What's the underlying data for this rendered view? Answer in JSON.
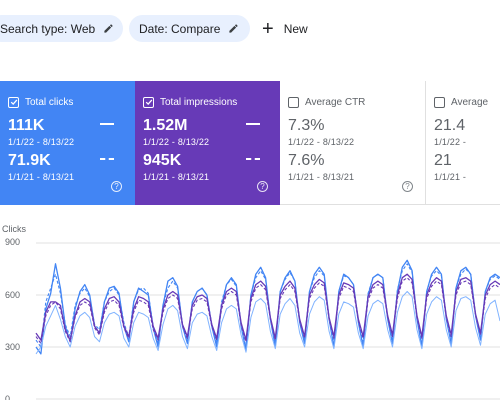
{
  "filters": {
    "search_type": "Search type: Web",
    "date": "Date: Compare",
    "new_label": "New"
  },
  "cards": {
    "clicks": {
      "label": "Total clicks",
      "current": "111K",
      "current_range": "1/1/22 - 8/13/22",
      "previous": "71.9K",
      "previous_range": "1/1/21 - 8/13/21",
      "checked": true,
      "color": "#4285f4"
    },
    "impressions": {
      "label": "Total impressions",
      "current": "1.52M",
      "current_range": "1/1/22 - 8/13/22",
      "previous": "945K",
      "previous_range": "1/1/21 - 8/13/21",
      "checked": true,
      "color": "#673ab7"
    },
    "ctr": {
      "label": "Average CTR",
      "current": "7.3%",
      "current_range": "1/1/22 - 8/13/22",
      "previous": "7.6%",
      "previous_range": "1/1/21 - 8/13/21",
      "checked": false
    },
    "position": {
      "label": "Average",
      "current": "21.4",
      "current_range": "1/1/22 -",
      "previous": "21",
      "previous_range": "1/1/21 -",
      "checked": false
    }
  },
  "help_glyph": "?",
  "chart_data": {
    "type": "line",
    "title": "Clicks",
    "ylabel": "Clicks",
    "ylim": [
      0,
      900
    ],
    "yticks": [
      "900",
      "600",
      "300",
      "0"
    ],
    "ytick_values": [
      900,
      600,
      300,
      0
    ],
    "grid": true,
    "x": [
      0,
      1,
      2,
      3,
      4,
      5,
      6,
      7,
      8,
      9,
      10,
      11,
      12,
      13,
      14,
      15,
      16,
      17,
      18,
      19,
      20,
      21,
      22,
      23,
      24,
      25,
      26,
      27,
      28,
      29,
      30,
      31,
      32,
      33,
      34,
      35,
      36,
      37,
      38,
      39,
      40,
      41,
      42,
      43,
      44,
      45,
      46,
      47,
      48,
      49,
      50,
      51,
      52,
      53,
      54,
      55,
      56,
      57,
      58,
      59,
      60,
      61,
      62,
      63,
      64,
      65,
      66,
      67,
      68,
      69,
      70,
      71,
      72,
      73,
      74,
      75,
      76,
      77,
      78,
      79,
      80,
      81,
      82,
      83,
      84,
      85,
      86,
      87,
      88,
      89,
      90,
      91,
      92,
      93,
      94,
      95
    ],
    "series": [
      {
        "color": "#4285f4",
        "style": "solid",
        "width": 1.3,
        "values": [
          300,
          260,
          520,
          610,
          780,
          640,
          420,
          330,
          520,
          620,
          660,
          600,
          420,
          380,
          560,
          640,
          650,
          610,
          420,
          330,
          560,
          640,
          620,
          600,
          410,
          300,
          540,
          680,
          700,
          650,
          420,
          320,
          560,
          620,
          640,
          600,
          420,
          300,
          540,
          660,
          700,
          660,
          420,
          280,
          600,
          720,
          760,
          700,
          460,
          300,
          620,
          700,
          740,
          680,
          440,
          320,
          620,
          720,
          760,
          720,
          460,
          300,
          620,
          720,
          700,
          660,
          440,
          300,
          600,
          700,
          720,
          700,
          460,
          320,
          620,
          760,
          800,
          740,
          460,
          300,
          620,
          720,
          760,
          720,
          460,
          320,
          640,
          740,
          760,
          720,
          480,
          340,
          620,
          700,
          720,
          700
        ]
      },
      {
        "color": "#4285f4",
        "style": "dashed",
        "width": 1.1,
        "values": [
          340,
          300,
          560,
          640,
          720,
          610,
          430,
          360,
          540,
          610,
          640,
          590,
          430,
          400,
          560,
          620,
          640,
          600,
          440,
          360,
          560,
          630,
          640,
          610,
          420,
          320,
          540,
          640,
          680,
          640,
          430,
          340,
          560,
          620,
          640,
          600,
          430,
          320,
          560,
          660,
          690,
          650,
          430,
          300,
          600,
          700,
          740,
          690,
          460,
          330,
          620,
          690,
          730,
          680,
          450,
          340,
          620,
          700,
          740,
          710,
          460,
          320,
          620,
          710,
          700,
          660,
          450,
          330,
          610,
          700,
          720,
          700,
          470,
          340,
          630,
          740,
          780,
          730,
          470,
          320,
          620,
          710,
          740,
          710,
          470,
          340,
          640,
          720,
          750,
          720,
          480,
          350,
          620,
          690,
          710,
          690
        ]
      },
      {
        "color": "#673ab7",
        "style": "solid",
        "width": 1.3,
        "values": [
          380,
          340,
          500,
          560,
          560,
          540,
          400,
          340,
          480,
          560,
          580,
          560,
          420,
          380,
          520,
          580,
          590,
          560,
          420,
          360,
          520,
          590,
          580,
          560,
          420,
          350,
          520,
          600,
          620,
          600,
          430,
          360,
          540,
          590,
          600,
          580,
          430,
          350,
          540,
          620,
          640,
          620,
          440,
          340,
          580,
          660,
          680,
          650,
          470,
          350,
          600,
          650,
          680,
          640,
          460,
          360,
          600,
          660,
          690,
          670,
          470,
          360,
          600,
          670,
          660,
          640,
          460,
          360,
          590,
          660,
          680,
          660,
          480,
          370,
          600,
          700,
          720,
          690,
          480,
          360,
          600,
          670,
          700,
          680,
          480,
          370,
          620,
          690,
          700,
          680,
          490,
          380,
          600,
          660,
          680,
          660
        ]
      },
      {
        "color": "#673ab7",
        "style": "dashed",
        "width": 1.1,
        "values": [
          360,
          320,
          480,
          540,
          560,
          520,
          390,
          330,
          470,
          540,
          560,
          540,
          410,
          370,
          500,
          560,
          570,
          540,
          410,
          350,
          500,
          570,
          560,
          540,
          400,
          340,
          500,
          580,
          600,
          580,
          420,
          350,
          520,
          570,
          580,
          560,
          420,
          340,
          520,
          600,
          620,
          600,
          430,
          330,
          560,
          640,
          660,
          630,
          460,
          340,
          580,
          630,
          660,
          620,
          450,
          350,
          580,
          640,
          670,
          650,
          460,
          350,
          580,
          650,
          640,
          620,
          450,
          350,
          570,
          640,
          660,
          640,
          470,
          360,
          580,
          680,
          700,
          670,
          470,
          350,
          580,
          650,
          680,
          660,
          470,
          360,
          600,
          670,
          680,
          660,
          480,
          370,
          580,
          640,
          660,
          640
        ]
      },
      {
        "color": "#80b3ff",
        "style": "solid",
        "width": 1.0,
        "values": [
          260,
          300,
          420,
          480,
          540,
          460,
          360,
          300,
          420,
          480,
          500,
          470,
          360,
          330,
          440,
          490,
          500,
          480,
          350,
          300,
          440,
          500,
          490,
          470,
          350,
          280,
          430,
          520,
          540,
          510,
          360,
          290,
          440,
          490,
          500,
          480,
          360,
          280,
          440,
          520,
          540,
          520,
          370,
          270,
          470,
          560,
          580,
          550,
          390,
          290,
          490,
          550,
          580,
          540,
          380,
          300,
          490,
          560,
          590,
          570,
          390,
          290,
          490,
          560,
          550,
          530,
          380,
          290,
          480,
          550,
          570,
          550,
          400,
          300,
          500,
          590,
          620,
          590,
          400,
          290,
          490,
          560,
          590,
          570,
          400,
          300,
          510,
          580,
          590,
          570,
          410,
          310,
          490,
          550,
          570,
          450
        ]
      }
    ]
  }
}
